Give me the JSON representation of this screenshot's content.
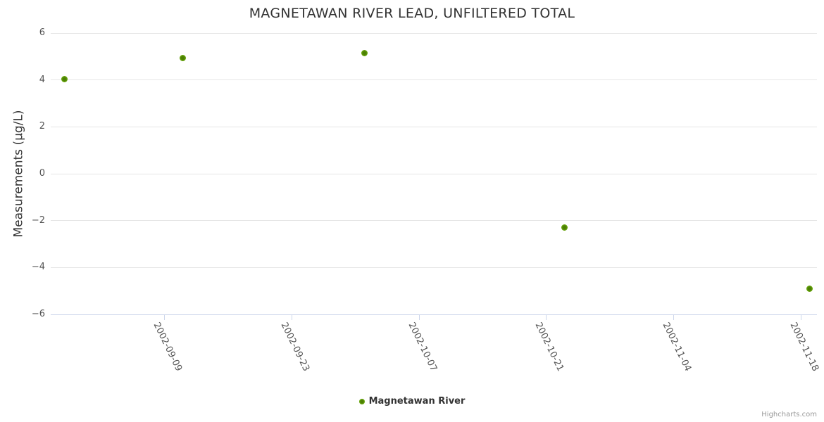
{
  "title": "MAGNETAWAN RIVER LEAD, UNFILTERED TOTAL",
  "legend": {
    "items": [
      {
        "label": "Magnetawan River",
        "color": "#69a80c"
      }
    ]
  },
  "credits": "Highcharts.com",
  "colors": {
    "series_green": "#69a80c",
    "series_green_center": "#4c8003",
    "gridline": "#e6e6e6",
    "axis_line": "#ccd6eb",
    "title_text": "#333333",
    "axis_text": "#545454",
    "credits_text": "#999999"
  },
  "chart_data": {
    "type": "scatter",
    "title": "MAGNETAWAN RIVER LEAD, UNFILTERED TOTAL",
    "xlabel": "",
    "ylabel": "Measurements (µg/L)",
    "grid": "horizontal-only",
    "legend_position": "bottom-center",
    "ylim": [
      -6,
      6
    ],
    "yticks": [
      6,
      4,
      2,
      0,
      -2,
      -4,
      -6
    ],
    "xlim": [
      "2002-08-27T12:00:00Z",
      "2002-11-19T19:00:00Z"
    ],
    "xticks": [
      "2002-09-09",
      "2002-09-23",
      "2002-10-07",
      "2002-10-21",
      "2002-11-04",
      "2002-11-18"
    ],
    "series": [
      {
        "name": "Magnetawan River",
        "color": "#69a80c",
        "points": [
          {
            "date": "2002-08-29",
            "value": 4.05
          },
          {
            "date": "2002-09-11",
            "value": 4.95
          },
          {
            "date": "2002-10-01",
            "value": 5.15
          },
          {
            "date": "2002-10-23",
            "value": -2.3
          },
          {
            "date": "2002-11-19",
            "value": -4.9
          }
        ]
      }
    ]
  }
}
